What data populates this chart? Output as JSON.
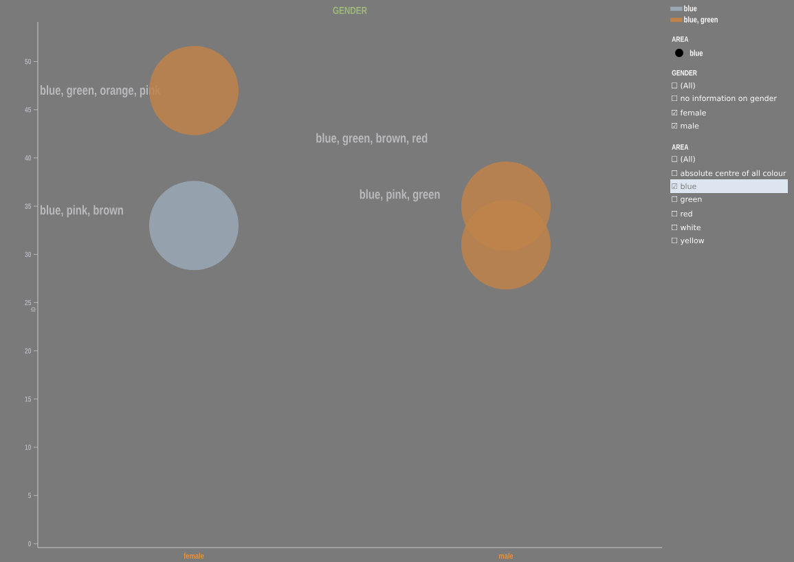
{
  "chart_data": [
    {
      "type": "bubble",
      "title": "GENDER",
      "ylabel": "ID",
      "categories": [
        "female",
        "male"
      ],
      "series": [
        {
          "name": "blue",
          "color": "#9aa8b6",
          "x": [
            "female"
          ],
          "values": [
            33
          ],
          "sizes": [
            1
          ]
        },
        {
          "name": "blue, green",
          "color": "#c0834a",
          "x": [
            "female",
            "male",
            "male"
          ],
          "values": [
            47,
            35,
            31
          ],
          "sizes": [
            1,
            1,
            1
          ]
        }
      ],
      "ylim": [
        -0.4,
        54.1
      ],
      "yticks": [
        0,
        5,
        10,
        15,
        20,
        25,
        30,
        35,
        40,
        45,
        50
      ],
      "grid": false,
      "legend": "top right",
      "marker": "circle",
      "annotations": [
        "blue, green, orange, pink",
        "blue, pink, brown",
        "blue, green, brown, red",
        "blue, pink, green"
      ]
    },
    {
      "type": "other",
      "annotations": [
        "AREA",
        "blue",
        "GENDER",
        "☐ (All)",
        "☐ no information on gender",
        "☑ female",
        "☑ male",
        "AREA",
        "☐ (All)",
        "☐ absolute centre of all colour",
        "☑ blue",
        "☐ green",
        "☐ red",
        "☐ white",
        "☐ yellow"
      ]
    }
  ]
}
